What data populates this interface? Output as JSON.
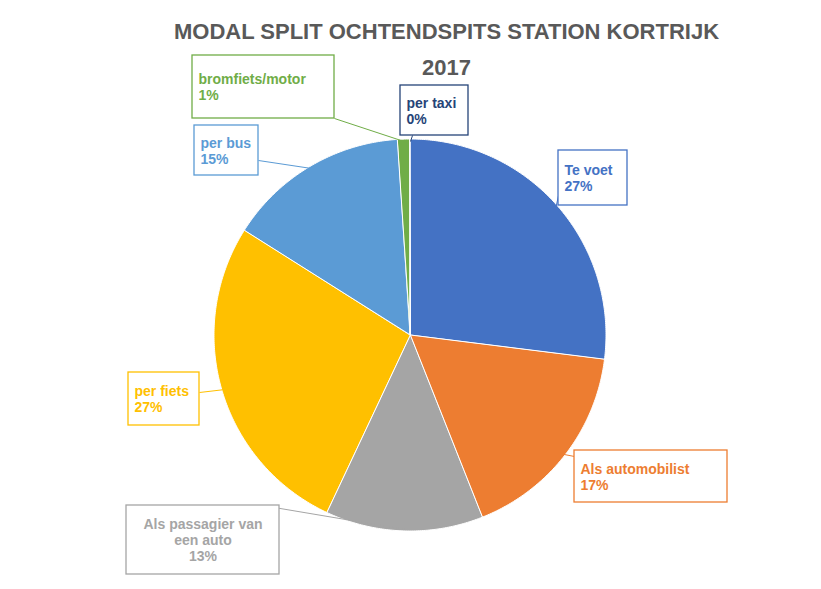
{
  "chart_data": {
    "type": "pie",
    "title": "MODAL SPLIT OCHTENDSPITS STATION KORTRIJK",
    "subtitle": "2017",
    "categories": [
      "Te voet",
      "Als automobilist",
      "Als passagier van een auto",
      "per fiets",
      "per bus",
      "bromfiets/motor",
      "per taxi"
    ],
    "values": [
      27,
      17,
      13,
      27,
      15,
      1,
      0
    ],
    "value_labels": [
      "27%",
      "17%",
      "13%",
      "27%",
      "15%",
      "1%",
      "0%"
    ],
    "colors": [
      "#4472c4",
      "#ed7d31",
      "#a5a5a5",
      "#ffc000",
      "#5b9bd5",
      "#70ad47",
      "#264478"
    ],
    "data_labels": true
  }
}
